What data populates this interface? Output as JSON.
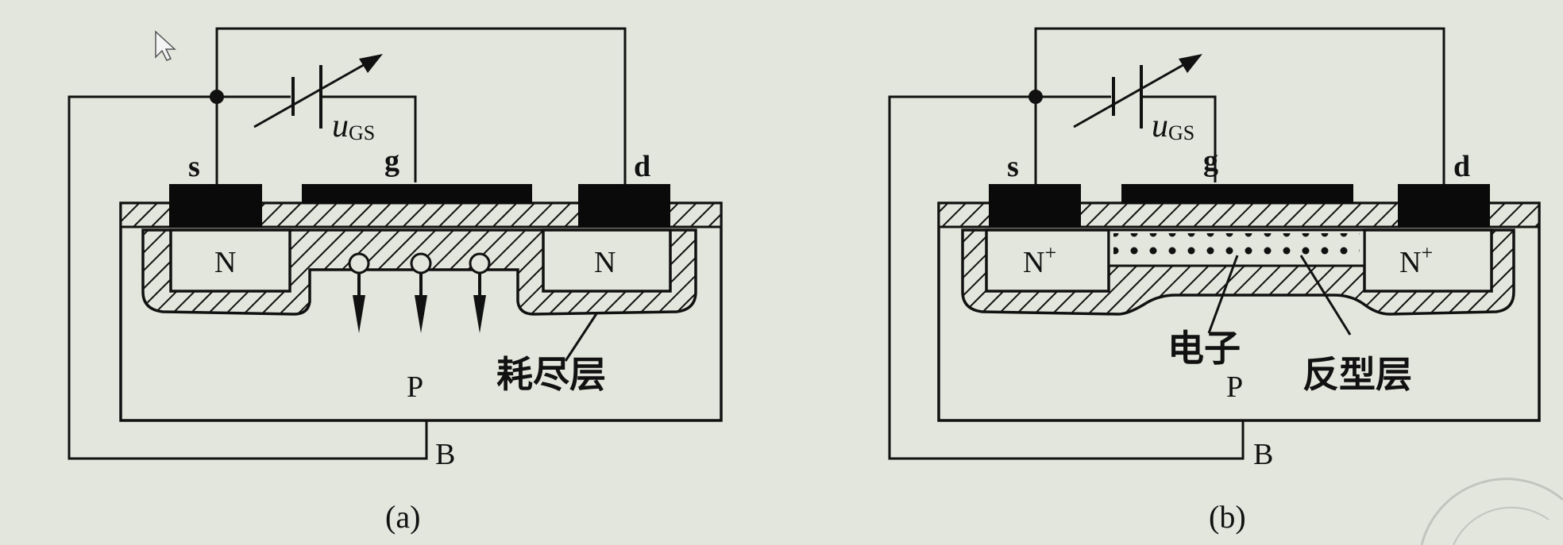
{
  "panel_a": {
    "caption": "(a)",
    "terminals": {
      "source": "s",
      "gate": "g",
      "drain": "d",
      "body": "B"
    },
    "voltage_label": {
      "symbol": "u",
      "subscript": "GS"
    },
    "source_region": "N",
    "drain_region": "N",
    "substrate": "P",
    "depletion_label": "耗尽层"
  },
  "panel_b": {
    "caption": "(b)",
    "terminals": {
      "source": "s",
      "gate": "g",
      "drain": "d",
      "body": "B"
    },
    "voltage_label": {
      "symbol": "u",
      "subscript": "GS"
    },
    "source_region": "N",
    "source_region_sup": "+",
    "drain_region": "N",
    "drain_region_sup": "+",
    "substrate": "P",
    "electron_label": "电子",
    "inversion_label": "反型层"
  },
  "colors": {
    "background": "#e3e6dc",
    "ink": "#111111"
  }
}
